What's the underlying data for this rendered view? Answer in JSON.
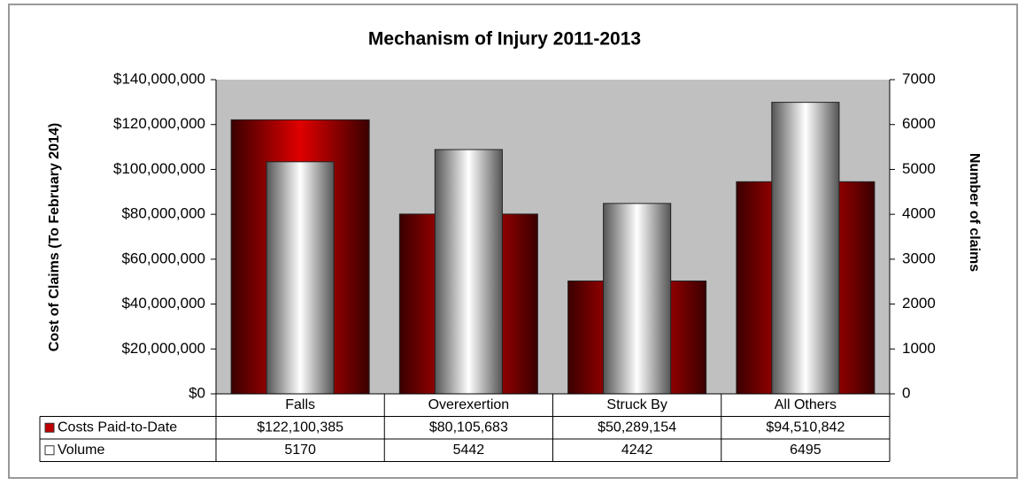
{
  "chart_data": {
    "type": "bar",
    "title": "Mechanism of Injury 2011-2013",
    "y_label": "Cost of Claims (To February 2014)",
    "y2_label": "Number of claims",
    "categories": [
      "Falls",
      "Overexertion",
      "Struck By",
      "All Others"
    ],
    "series": [
      {
        "name": "Costs Paid-to-Date",
        "color": "#e00000",
        "values": [
          122100385,
          80105683,
          50289154,
          94510842
        ],
        "value_labels": [
          "$122,100,385",
          "$80,105,683",
          "$50,289,154",
          "$94,510,842"
        ]
      },
      {
        "name": "Volume",
        "color": "#ffffff",
        "axis": "y2",
        "values": [
          5170,
          5442,
          4242,
          6495
        ]
      }
    ],
    "ylim": [
      0,
      140000000
    ],
    "yticks": [
      {
        "value": 0,
        "label": "$0"
      },
      {
        "value": 20000000,
        "label": "$20,000,000"
      },
      {
        "value": 40000000,
        "label": "$40,000,000"
      },
      {
        "value": 60000000,
        "label": "$60,000,000"
      },
      {
        "value": 80000000,
        "label": "$80,000,000"
      },
      {
        "value": 100000000,
        "label": "$100,000,000"
      },
      {
        "value": 120000000,
        "label": "$120,000,000"
      },
      {
        "value": 140000000,
        "label": "$140,000,000"
      }
    ],
    "y2lim": [
      0,
      7000
    ],
    "y2ticks": [
      0,
      1000,
      2000,
      3000,
      4000,
      5000,
      6000,
      7000
    ],
    "grid": false
  }
}
